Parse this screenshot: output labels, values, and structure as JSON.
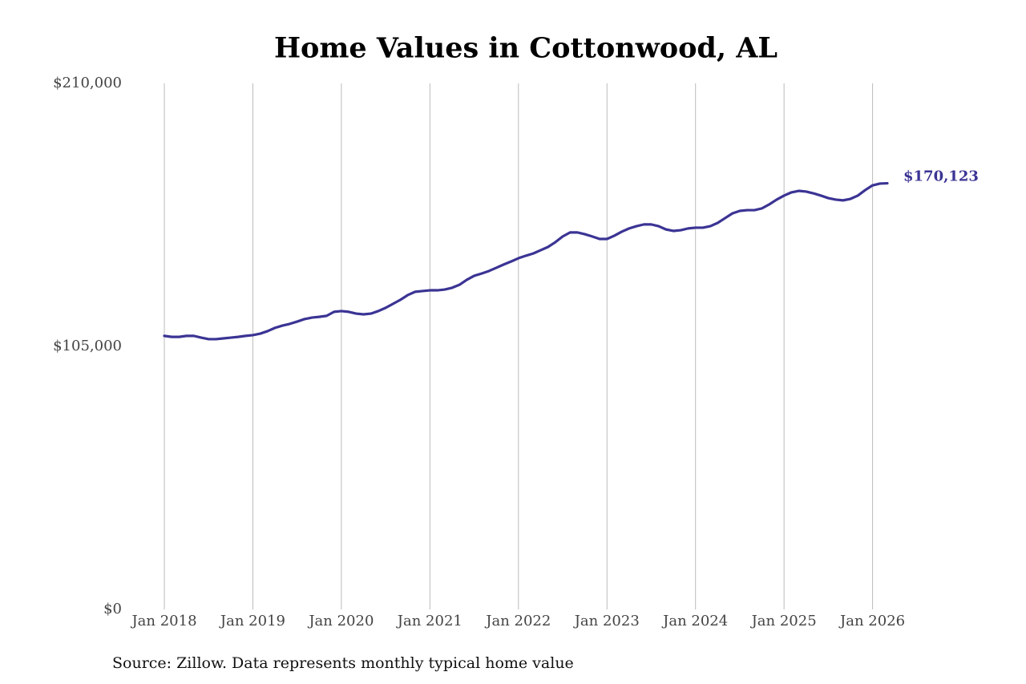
{
  "chart_data": {
    "type": "line",
    "title": "Home Values in Cottonwood, AL",
    "caption": "Source: Zillow. Data represents monthly typical home value",
    "x": [
      "2018-01",
      "2018-02",
      "2018-03",
      "2018-04",
      "2018-05",
      "2018-06",
      "2018-07",
      "2018-08",
      "2018-09",
      "2018-10",
      "2018-11",
      "2018-12",
      "2019-01",
      "2019-02",
      "2019-03",
      "2019-04",
      "2019-05",
      "2019-06",
      "2019-07",
      "2019-08",
      "2019-09",
      "2019-10",
      "2019-11",
      "2019-12",
      "2020-01",
      "2020-02",
      "2020-03",
      "2020-04",
      "2020-05",
      "2020-06",
      "2020-07",
      "2020-08",
      "2020-09",
      "2020-10",
      "2020-11",
      "2020-12",
      "2021-01",
      "2021-02",
      "2021-03",
      "2021-04",
      "2021-05",
      "2021-06",
      "2021-07",
      "2021-08",
      "2021-09",
      "2021-10",
      "2021-11",
      "2021-12",
      "2022-01",
      "2022-02",
      "2022-03",
      "2022-04",
      "2022-05",
      "2022-06",
      "2022-07",
      "2022-08",
      "2022-09",
      "2022-10",
      "2022-11",
      "2022-12",
      "2023-01",
      "2023-02",
      "2023-03",
      "2023-04",
      "2023-05",
      "2023-06",
      "2023-07",
      "2023-08",
      "2023-09",
      "2023-10",
      "2023-11",
      "2023-12",
      "2024-01",
      "2024-02",
      "2024-03",
      "2024-04",
      "2024-05",
      "2024-06",
      "2024-07",
      "2024-08",
      "2024-09",
      "2024-10",
      "2024-11",
      "2024-12",
      "2025-01",
      "2025-02",
      "2025-03",
      "2025-04",
      "2025-05",
      "2025-06",
      "2025-07",
      "2025-08",
      "2025-09",
      "2025-10",
      "2025-11",
      "2025-12",
      "2026-01",
      "2026-02",
      "2026-03"
    ],
    "values": [
      109200,
      108800,
      108800,
      109200,
      109200,
      108500,
      107900,
      107900,
      108200,
      108500,
      108800,
      109200,
      109500,
      110100,
      111100,
      112400,
      113300,
      114000,
      114900,
      115900,
      116500,
      116800,
      117200,
      118800,
      119100,
      118800,
      118100,
      117800,
      118100,
      119100,
      120400,
      122000,
      123600,
      125500,
      126800,
      127100,
      127400,
      127400,
      127700,
      128400,
      129600,
      131600,
      133200,
      134100,
      135100,
      136400,
      137700,
      138900,
      140200,
      141200,
      142100,
      143400,
      144700,
      146600,
      148900,
      150500,
      150500,
      149800,
      148900,
      147900,
      147900,
      149200,
      150800,
      152100,
      153000,
      153700,
      153700,
      153000,
      151700,
      151100,
      151400,
      152100,
      152400,
      152400,
      153000,
      154300,
      156200,
      158100,
      159100,
      159400,
      159400,
      160100,
      161700,
      163600,
      165200,
      166500,
      167100,
      166800,
      166100,
      165200,
      164200,
      163600,
      163300,
      163900,
      165200,
      167400,
      169300,
      170000,
      170123
    ],
    "value_labels": [
      null,
      null,
      null,
      null,
      null,
      null,
      null,
      null,
      null,
      null,
      null,
      null,
      null,
      null,
      null,
      null,
      null,
      null,
      null,
      null,
      null,
      null,
      null,
      null,
      null,
      null,
      null,
      null,
      null,
      null,
      null,
      null,
      null,
      null,
      null,
      null,
      null,
      null,
      null,
      null,
      null,
      null,
      null,
      null,
      null,
      null,
      null,
      null,
      null,
      null,
      null,
      null,
      null,
      null,
      null,
      null,
      null,
      null,
      null,
      null,
      null,
      null,
      null,
      null,
      null,
      null,
      null,
      null,
      null,
      null,
      null,
      null,
      null,
      null,
      null,
      null,
      null,
      null,
      null,
      null,
      null,
      null,
      null,
      null,
      null,
      null,
      null,
      null,
      null,
      null,
      null,
      null,
      null,
      null,
      null,
      null,
      null,
      null,
      "$170,123"
    ],
    "color": "#3b3494",
    "xlim": [
      "2018-01",
      "2026-03"
    ],
    "xticks": [
      {
        "value": "2018-01",
        "label": "Jan 2018"
      },
      {
        "value": "2019-01",
        "label": "Jan 2019"
      },
      {
        "value": "2020-01",
        "label": "Jan 2020"
      },
      {
        "value": "2021-01",
        "label": "Jan 2021"
      },
      {
        "value": "2022-01",
        "label": "Jan 2022"
      },
      {
        "value": "2023-01",
        "label": "Jan 2023"
      },
      {
        "value": "2024-01",
        "label": "Jan 2024"
      },
      {
        "value": "2025-01",
        "label": "Jan 2025"
      },
      {
        "value": "2026-01",
        "label": "Jan 2026"
      }
    ],
    "ylim": [
      0,
      210000
    ],
    "yticks": [
      {
        "value": 0,
        "label": "$0"
      },
      {
        "value": 105000,
        "label": "$105,000"
      },
      {
        "value": 210000,
        "label": "$210,000"
      }
    ],
    "grid": true
  }
}
